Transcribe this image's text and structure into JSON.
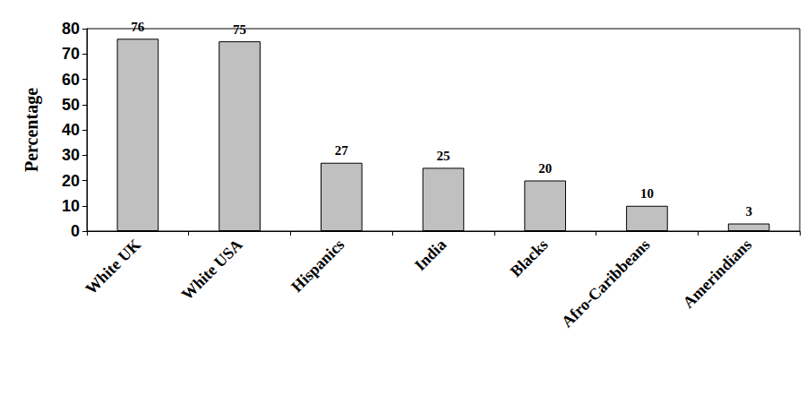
{
  "chart_data": {
    "type": "bar",
    "y_label": "Percentage",
    "categories": [
      "White UK",
      "White USA",
      "Hispanics",
      "India",
      "Blacks",
      "Afro-Caribbeans",
      "Amerindians"
    ],
    "values": [
      76,
      75,
      27,
      25,
      20,
      10,
      3
    ],
    "color": "#c0c0c0",
    "ylim": [
      0,
      80
    ],
    "yticks": [
      0,
      10,
      20,
      30,
      40,
      50,
      60,
      70,
      80
    ],
    "grid": false,
    "data_labels": true
  }
}
